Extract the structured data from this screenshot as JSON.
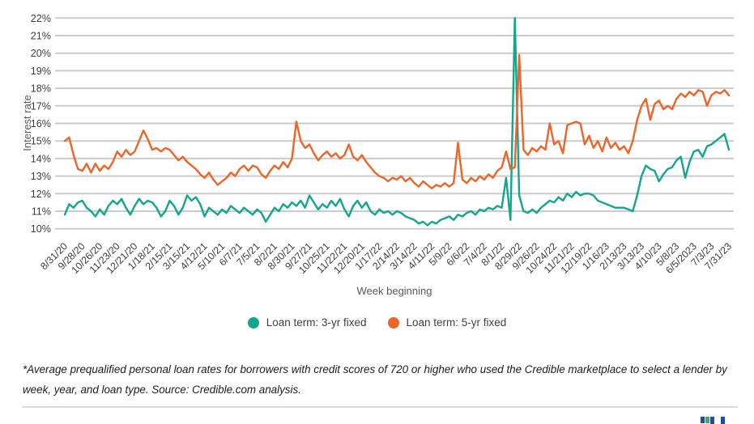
{
  "chart_data": {
    "type": "line",
    "title": "",
    "xlabel": "Week beginning",
    "ylabel": "Interest rate",
    "ylim": [
      10,
      22
    ],
    "grid": "horizontal",
    "legend_position": "bottom",
    "y_tick_labels": [
      "22%",
      "21%",
      "20%",
      "19%",
      "18%",
      "17%",
      "16%",
      "15%",
      "14%",
      "13%",
      "12%",
      "11%",
      "10%"
    ],
    "points_per_tick": 4,
    "x_tick_labels": [
      "8/31/20",
      "9/28/20",
      "10/26/20",
      "11/23/20",
      "12/21/20",
      "1/18/21",
      "2/15/21",
      "3/15/21",
      "4/12/21",
      "5/10/21",
      "6/7/21",
      "7/5/21",
      "8/2/21",
      "8/30/21",
      "9/27/21",
      "10/25/21",
      "11/22/21",
      "12/20/21",
      "1/17/22",
      "2/14/22",
      "3/14/22",
      "4/11/22",
      "5/9/22",
      "6/6/22",
      "7/4/22",
      "8/1/22",
      "8/29/22",
      "9/26/22",
      "10/24/22",
      "11/21/22",
      "12/19/22",
      "1/16/23",
      "2/13/23",
      "3/13/23",
      "4/10/23",
      "5/8/23",
      "6/5/2023",
      "7/3/23",
      "7/31/23"
    ],
    "series": [
      {
        "name": "Loan term: 3-yr fixed",
        "color": "#13a68d",
        "values": [
          10.8,
          11.4,
          11.2,
          11.5,
          11.6,
          11.2,
          11.0,
          10.7,
          11.1,
          10.8,
          11.3,
          11.6,
          11.4,
          11.7,
          11.2,
          10.8,
          11.3,
          11.7,
          11.4,
          11.6,
          11.5,
          11.2,
          10.7,
          11.0,
          11.6,
          11.3,
          10.8,
          11.2,
          11.9,
          11.6,
          11.8,
          11.4,
          10.7,
          11.2,
          11.0,
          10.8,
          11.1,
          10.9,
          11.3,
          11.1,
          10.9,
          11.2,
          11.0,
          10.8,
          11.1,
          10.9,
          10.4,
          10.8,
          11.2,
          11.0,
          11.4,
          11.2,
          11.5,
          11.3,
          11.6,
          11.2,
          11.9,
          11.5,
          11.1,
          11.4,
          11.2,
          11.6,
          11.3,
          11.7,
          11.1,
          10.7,
          11.3,
          11.6,
          11.2,
          11.5,
          11.0,
          10.8,
          11.1,
          10.9,
          11.0,
          10.8,
          11.0,
          10.9,
          10.7,
          10.6,
          10.5,
          10.3,
          10.4,
          10.2,
          10.4,
          10.3,
          10.5,
          10.6,
          10.7,
          10.5,
          10.8,
          10.7,
          10.9,
          11.0,
          10.8,
          11.1,
          11.0,
          11.2,
          11.1,
          11.3,
          11.2,
          12.9,
          10.5,
          22.0,
          11.9,
          11.0,
          10.9,
          11.1,
          10.9,
          11.2,
          11.4,
          11.6,
          11.5,
          11.8,
          11.6,
          12.0,
          11.8,
          12.1,
          11.9,
          12.0,
          12.0,
          11.9,
          11.6,
          11.5,
          11.4,
          11.3,
          11.2,
          11.2,
          11.2,
          11.1,
          11.0,
          11.9,
          13.0,
          13.6,
          13.4,
          13.3,
          12.7,
          13.1,
          13.4,
          13.5,
          13.9,
          14.1,
          12.9,
          13.8,
          14.4,
          14.5,
          14.1,
          14.7,
          14.8,
          15.0,
          15.2,
          15.4,
          14.5
        ]
      },
      {
        "name": "Loan term: 5-yr fixed",
        "color": "#ec6529",
        "values": [
          15.0,
          15.2,
          14.2,
          13.4,
          13.3,
          13.7,
          13.2,
          13.7,
          13.3,
          13.6,
          13.4,
          13.8,
          14.4,
          14.1,
          14.5,
          14.2,
          14.4,
          15.0,
          15.6,
          15.1,
          14.5,
          14.6,
          14.4,
          14.6,
          14.5,
          14.2,
          13.9,
          14.1,
          13.8,
          13.6,
          13.4,
          13.1,
          12.9,
          13.2,
          12.8,
          12.5,
          12.7,
          12.9,
          13.2,
          13.0,
          13.4,
          13.6,
          13.3,
          13.6,
          13.5,
          13.1,
          12.9,
          13.3,
          13.6,
          13.4,
          13.8,
          13.5,
          14.0,
          16.1,
          15.0,
          14.6,
          14.8,
          14.3,
          13.9,
          14.2,
          14.4,
          14.1,
          14.3,
          14.0,
          14.2,
          14.8,
          14.1,
          13.9,
          14.2,
          13.8,
          13.5,
          13.2,
          13.0,
          12.9,
          12.7,
          12.9,
          12.8,
          13.0,
          12.7,
          12.9,
          12.6,
          12.4,
          12.7,
          12.5,
          12.3,
          12.5,
          12.4,
          12.6,
          12.4,
          12.6,
          14.9,
          12.8,
          12.6,
          12.9,
          12.7,
          13.0,
          12.8,
          13.1,
          12.9,
          13.3,
          13.5,
          14.4,
          13.4,
          13.5,
          19.9,
          14.5,
          14.2,
          14.6,
          14.4,
          14.7,
          14.5,
          16.0,
          14.8,
          15.0,
          14.3,
          15.9,
          16.0,
          16.1,
          16.0,
          14.8,
          15.3,
          14.6,
          15.0,
          14.4,
          15.2,
          14.6,
          14.9,
          14.5,
          14.7,
          14.3,
          15.0,
          16.2,
          17.0,
          17.4,
          16.2,
          17.1,
          17.3,
          16.8,
          17.0,
          16.8,
          17.4,
          17.7,
          17.5,
          17.8,
          17.6,
          17.9,
          17.8,
          17.0,
          17.6,
          17.8,
          17.7,
          17.9,
          17.6
        ]
      }
    ]
  },
  "legend": {
    "items": [
      {
        "label": "Loan term: 3-yr fixed",
        "color": "#13a68d"
      },
      {
        "label": "Loan term: 5-yr fixed",
        "color": "#ec6529"
      }
    ]
  },
  "axes": {
    "y_title": "Interest rate",
    "x_title": "Week beginning"
  },
  "footnote": "*Average prequalified personal loan rates for borrowers with credit scores of 720 or higher who used the Credible marketplace to select a lender by week, year, and loan type. Source: Credible.com analysis.",
  "colors": {
    "grid": "#cbcbcb",
    "tick_text": "#3c3c3c",
    "axis_title_text": "#57585a",
    "logo_blue": "#1b4fa0",
    "logo_teal": "#2fae84"
  }
}
